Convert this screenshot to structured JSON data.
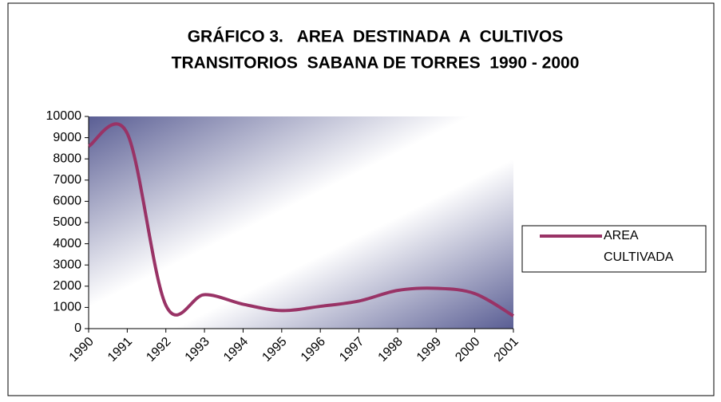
{
  "chart_data": {
    "type": "line",
    "title": [
      "GRÁFICO 3.   AREA  DESTINADA  A  CULTIVOS",
      "TRANSITORIOS  SABANA DE TORRES  1990 - 2000"
    ],
    "categories": [
      "1990",
      "1991",
      "1992",
      "1993",
      "1994",
      "1995",
      "1996",
      "1997",
      "1998",
      "1999",
      "2000",
      "2001"
    ],
    "series": [
      {
        "name": "AREA CULTIVADA",
        "color": "#993366",
        "values": [
          8600,
          9200,
          1100,
          1600,
          1150,
          850,
          1050,
          1300,
          1800,
          1900,
          1650,
          600
        ]
      }
    ],
    "ylim": [
      0,
      10000
    ],
    "yticks": [
      0,
      1000,
      2000,
      3000,
      4000,
      5000,
      6000,
      7000,
      8000,
      9000,
      10000
    ],
    "grid": false,
    "legend": "right",
    "smooth": true
  }
}
